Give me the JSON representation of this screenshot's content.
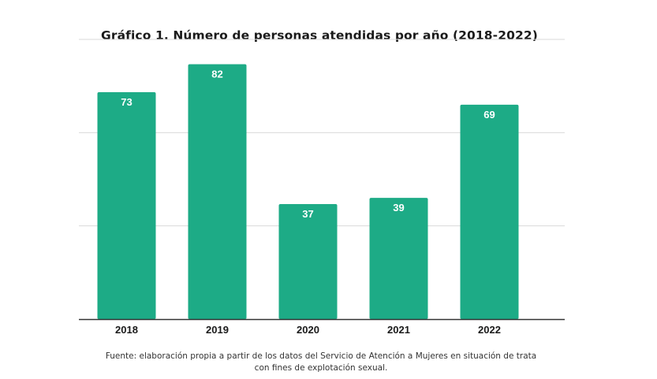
{
  "chart_data": {
    "type": "bar",
    "title": "Gráfico 1. Número de personas atendidas por año (2018-2022)",
    "categories": [
      "2018",
      "2019",
      "2020",
      "2021",
      "2022"
    ],
    "values": [
      73,
      82,
      37,
      39,
      69
    ],
    "data_labels": [
      "73",
      "82",
      "37",
      "39",
      "69"
    ],
    "xlabel": "",
    "ylabel": "",
    "ylim": [
      0,
      90
    ],
    "gridlines_at": [
      30,
      60,
      90
    ],
    "grid": true,
    "legend": "none",
    "bar_color": "#1dab86",
    "grid_color": "#d9d9d9",
    "axis_color": "#333333"
  },
  "source_note": {
    "line1": "Fuente: elaboración propia a partir de los datos del Servicio de Atención a Mujeres en situación de trata",
    "line2": "con fines de explotación sexual."
  }
}
